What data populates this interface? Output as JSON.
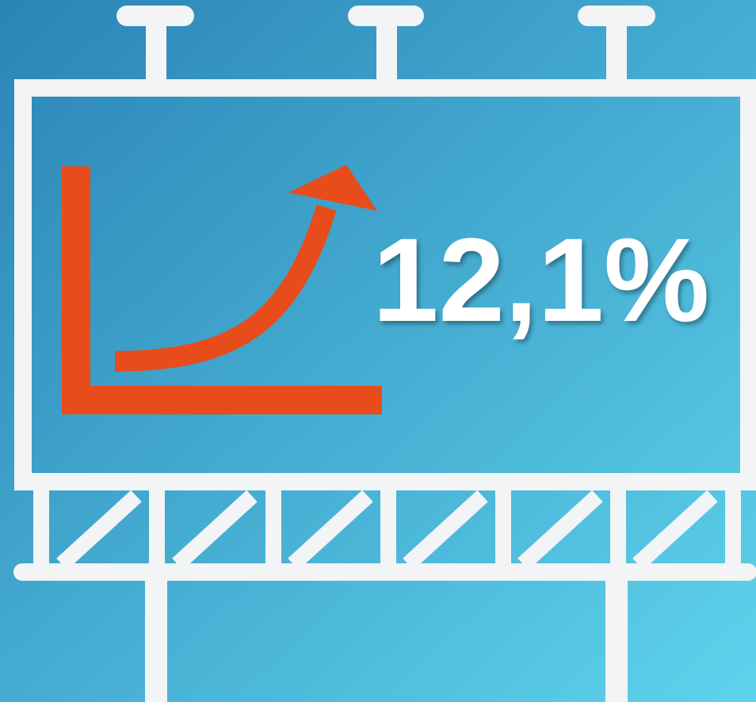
{
  "figure": "12,1%"
}
